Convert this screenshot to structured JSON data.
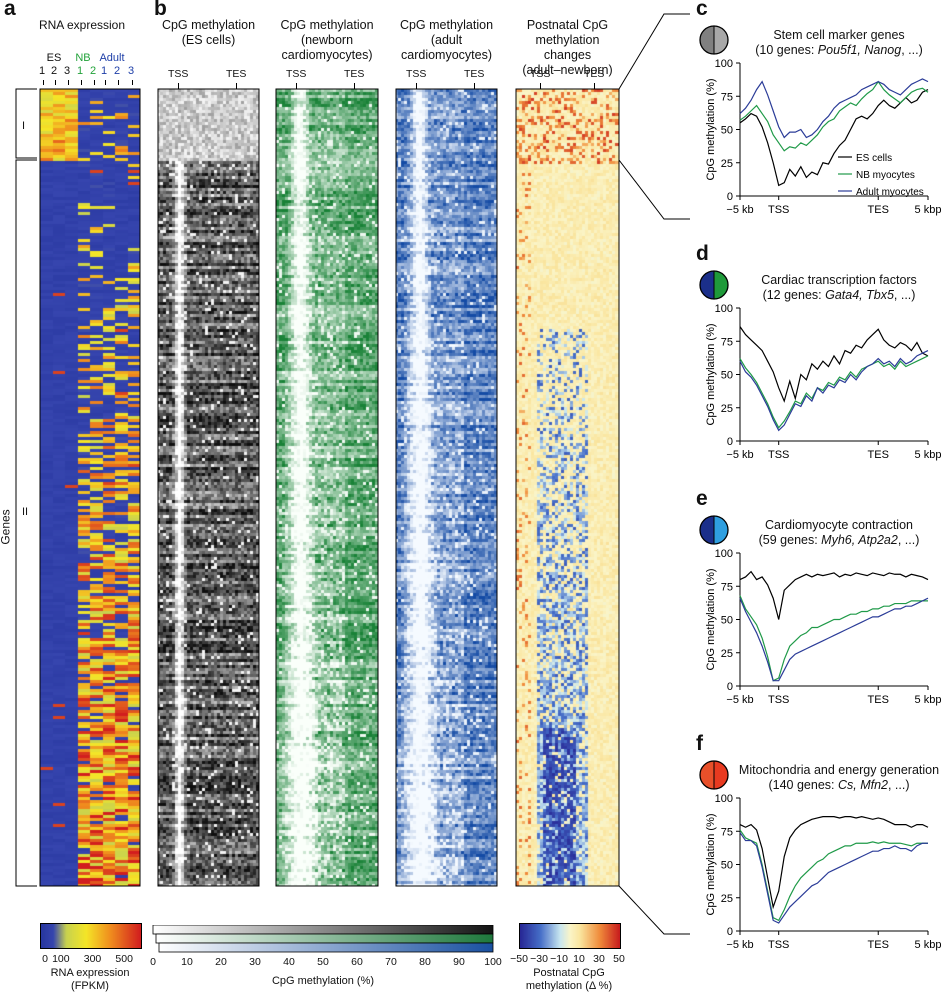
{
  "panels": {
    "a": {
      "label": "a",
      "title": "RNA expression",
      "sample_groups": [
        {
          "name": "ES",
          "color": "#111111",
          "reps": [
            "1",
            "2",
            "3"
          ]
        },
        {
          "name": "NB",
          "color": "#22a23a",
          "reps": [
            "1",
            "2"
          ]
        },
        {
          "name": "Adult",
          "color": "#1e3fa8",
          "reps": [
            "1",
            "2",
            "3"
          ]
        }
      ],
      "y_label": "Genes",
      "clusters": [
        "I",
        "II"
      ],
      "colorbar": {
        "ticks": [
          "0",
          "100",
          "300",
          "500"
        ],
        "label_line1": "RNA expression",
        "label_line2": "(FPKM)"
      }
    },
    "b": {
      "label": "b",
      "heatmaps": [
        {
          "title1": "CpG methylation",
          "title2": "(ES cells)",
          "title3": "",
          "tss": "TSS",
          "tes": "TES"
        },
        {
          "title1": "CpG methylation",
          "title2": "(newborn",
          "title3": "cardiomyocytes)",
          "tss": "TSS",
          "tes": "TES"
        },
        {
          "title1": "CpG methylation",
          "title2": "(adult",
          "title3": "cardiomyocytes)",
          "tss": "TSS",
          "tes": "TES"
        },
        {
          "title1": "Postnatal CpG methylation",
          "title2": "changes",
          "title3": "(adult–newborn)",
          "tss": "TSS",
          "tes": "TES"
        }
      ],
      "colorbar_meth": {
        "ticks": [
          "0",
          "10",
          "20",
          "30",
          "40",
          "50",
          "60",
          "70",
          "80",
          "90",
          "100"
        ],
        "label": "CpG methylation (%)"
      },
      "colorbar_delta": {
        "ticks": [
          "−50",
          "−30",
          "−10",
          "10",
          "30",
          "50"
        ],
        "label_line1": "Postnatal CpG",
        "label_line2": "methylation (Δ %)"
      }
    }
  },
  "line_panels": [
    {
      "label": "c",
      "title1": "Stem cell marker genes",
      "title2_prefix": "(10 genes: ",
      "title2_italic": "Pou5f1, Nanog",
      "title2_suffix": ", ...)",
      "icon": [
        "#808080",
        "#a8a8a8"
      ]
    },
    {
      "label": "d",
      "title1": "Cardiac transcription factors",
      "title2_prefix": "(12 genes: ",
      "title2_italic": "Gata4, Tbx5",
      "title2_suffix": ", ...)",
      "icon": [
        "#1b2f8a",
        "#1f9a3a"
      ]
    },
    {
      "label": "e",
      "title1": "Cardiomyocyte contraction",
      "title2_prefix": "(59 genes: ",
      "title2_italic": "Myh6, Atp2a2",
      "title2_suffix": ", ...)",
      "icon": [
        "#1b2f8a",
        "#2f9fe0"
      ]
    },
    {
      "label": "f",
      "title1": "Mitochondria and energy generation",
      "title2_prefix": "(140 genes: ",
      "title2_italic": "Cs, Mfn2",
      "title2_suffix": ", ...)",
      "icon": [
        "#e8502a",
        "#e83a20"
      ]
    }
  ],
  "colors": {
    "es": "#000000",
    "nb": "#1f9a48",
    "adult": "#2b3c98"
  },
  "chart_data": [
    {
      "type": "line",
      "panel": "c",
      "ylabel": "CpG methylation (%)",
      "ylim": [
        0,
        100
      ],
      "yticks": [
        0,
        25,
        50,
        75,
        100
      ],
      "xtick_labels": [
        "−5 kb",
        "TSS",
        "TES",
        "5 kbp"
      ],
      "x": [
        0,
        1,
        2,
        3,
        4,
        5,
        6,
        7,
        8,
        9,
        10,
        11,
        12,
        13,
        14,
        15,
        16,
        17,
        18,
        19,
        20,
        21,
        22,
        23,
        24,
        25,
        26,
        27,
        28,
        29,
        30,
        31,
        32,
        33,
        34
      ],
      "legend": [
        "ES cells",
        "NB myocytes",
        "Adult myocytes"
      ],
      "series": [
        {
          "name": "ES cells",
          "values": [
            55,
            58,
            62,
            60,
            52,
            40,
            25,
            8,
            10,
            20,
            15,
            22,
            14,
            18,
            16,
            25,
            24,
            32,
            38,
            42,
            50,
            58,
            60,
            58,
            62,
            68,
            72,
            68,
            66,
            70,
            74,
            70,
            72,
            78,
            80
          ]
        },
        {
          "name": "NB myocytes",
          "values": [
            57,
            60,
            64,
            68,
            62,
            56,
            46,
            40,
            34,
            37,
            36,
            40,
            38,
            42,
            46,
            52,
            56,
            58,
            64,
            67,
            70,
            68,
            73,
            77,
            80,
            86,
            80,
            76,
            73,
            70,
            74,
            78,
            80,
            81,
            78
          ]
        },
        {
          "name": "Adult myocytes",
          "values": [
            62,
            66,
            72,
            80,
            86,
            76,
            64,
            52,
            44,
            48,
            48,
            50,
            44,
            46,
            50,
            56,
            60,
            66,
            70,
            72,
            74,
            76,
            80,
            82,
            84,
            86,
            84,
            80,
            78,
            76,
            80,
            84,
            86,
            88,
            86
          ]
        }
      ]
    },
    {
      "type": "line",
      "panel": "d",
      "ylabel": "CpG methylation (%)",
      "ylim": [
        0,
        100
      ],
      "yticks": [
        0,
        25,
        50,
        75,
        100
      ],
      "xtick_labels": [
        "−5 kb",
        "TSS",
        "TES",
        "5 kbp"
      ],
      "x": [
        0,
        1,
        2,
        3,
        4,
        5,
        6,
        7,
        8,
        9,
        10,
        11,
        12,
        13,
        14,
        15,
        16,
        17,
        18,
        19,
        20,
        21,
        22,
        23,
        24,
        25,
        26,
        27,
        28,
        29,
        30,
        31,
        32,
        33,
        34
      ],
      "series": [
        {
          "name": "ES cells",
          "values": [
            86,
            80,
            76,
            72,
            68,
            60,
            52,
            40,
            30,
            45,
            32,
            50,
            46,
            58,
            54,
            60,
            56,
            64,
            58,
            68,
            66,
            72,
            70,
            76,
            80,
            84,
            76,
            72,
            70,
            74,
            72,
            68,
            74,
            66,
            64
          ]
        },
        {
          "name": "NB myocytes",
          "values": [
            62,
            55,
            50,
            44,
            36,
            28,
            18,
            10,
            15,
            22,
            30,
            28,
            36,
            32,
            40,
            38,
            44,
            42,
            48,
            46,
            52,
            48,
            54,
            56,
            58,
            60,
            56,
            58,
            54,
            60,
            56,
            58,
            60,
            62,
            64
          ]
        },
        {
          "name": "Adult myocytes",
          "values": [
            60,
            52,
            48,
            42,
            34,
            26,
            16,
            8,
            12,
            20,
            28,
            26,
            34,
            30,
            40,
            36,
            42,
            40,
            46,
            44,
            50,
            46,
            52,
            56,
            58,
            62,
            58,
            60,
            56,
            62,
            58,
            60,
            64,
            66,
            68
          ]
        }
      ]
    },
    {
      "type": "line",
      "panel": "e",
      "ylabel": "CpG methylation (%)",
      "ylim": [
        0,
        100
      ],
      "yticks": [
        0,
        25,
        50,
        75,
        100
      ],
      "xtick_labels": [
        "−5 kb",
        "TSS",
        "TES",
        "5 kbp"
      ],
      "x": [
        0,
        1,
        2,
        3,
        4,
        5,
        6,
        7,
        8,
        9,
        10,
        11,
        12,
        13,
        14,
        15,
        16,
        17,
        18,
        19,
        20,
        21,
        22,
        23,
        24,
        25,
        26,
        27,
        28,
        29,
        30,
        31,
        32,
        33,
        34
      ],
      "series": [
        {
          "name": "ES cells",
          "values": [
            80,
            82,
            86,
            80,
            82,
            76,
            66,
            50,
            72,
            76,
            80,
            82,
            84,
            82,
            84,
            83,
            84,
            85,
            82,
            84,
            83,
            85,
            84,
            83,
            85,
            84,
            83,
            85,
            84,
            84,
            82,
            84,
            83,
            82,
            80
          ]
        },
        {
          "name": "NB myocytes",
          "values": [
            68,
            58,
            52,
            46,
            36,
            22,
            4,
            6,
            20,
            30,
            34,
            38,
            40,
            44,
            44,
            46,
            48,
            50,
            50,
            52,
            54,
            54,
            56,
            56,
            58,
            58,
            60,
            60,
            62,
            62,
            62,
            64,
            64,
            64,
            64
          ]
        },
        {
          "name": "Adult myocytes",
          "values": [
            66,
            56,
            48,
            40,
            30,
            18,
            4,
            4,
            12,
            20,
            24,
            26,
            28,
            30,
            32,
            34,
            36,
            38,
            40,
            42,
            44,
            46,
            48,
            50,
            52,
            52,
            54,
            56,
            58,
            58,
            60,
            60,
            62,
            64,
            66
          ]
        }
      ]
    },
    {
      "type": "line",
      "panel": "f",
      "ylabel": "CpG methylation (%)",
      "ylim": [
        0,
        100
      ],
      "yticks": [
        0,
        25,
        50,
        75,
        100
      ],
      "xtick_labels": [
        "−5 kb",
        "TSS",
        "TES",
        "5 kbp"
      ],
      "x": [
        0,
        1,
        2,
        3,
        4,
        5,
        6,
        7,
        8,
        9,
        10,
        11,
        12,
        13,
        14,
        15,
        16,
        17,
        18,
        19,
        20,
        21,
        22,
        23,
        24,
        25,
        26,
        27,
        28,
        29,
        30,
        31,
        32,
        33,
        34
      ],
      "series": [
        {
          "name": "ES cells",
          "values": [
            80,
            78,
            80,
            76,
            62,
            40,
            18,
            30,
            56,
            70,
            76,
            80,
            82,
            84,
            85,
            86,
            86,
            86,
            85,
            86,
            86,
            85,
            86,
            85,
            84,
            85,
            84,
            82,
            80,
            80,
            80,
            78,
            80,
            80,
            78
          ]
        },
        {
          "name": "NB myocytes",
          "values": [
            76,
            70,
            68,
            66,
            50,
            30,
            10,
            8,
            16,
            26,
            34,
            40,
            44,
            48,
            52,
            54,
            58,
            60,
            62,
            64,
            64,
            66,
            66,
            66,
            67,
            66,
            67,
            66,
            66,
            66,
            65,
            64,
            66,
            66,
            66
          ]
        },
        {
          "name": "Adult myocytes",
          "values": [
            74,
            68,
            68,
            64,
            48,
            28,
            8,
            6,
            12,
            18,
            22,
            26,
            30,
            34,
            36,
            40,
            44,
            46,
            48,
            50,
            52,
            54,
            56,
            58,
            60,
            60,
            62,
            62,
            64,
            62,
            62,
            60,
            64,
            66,
            66
          ]
        }
      ]
    }
  ]
}
